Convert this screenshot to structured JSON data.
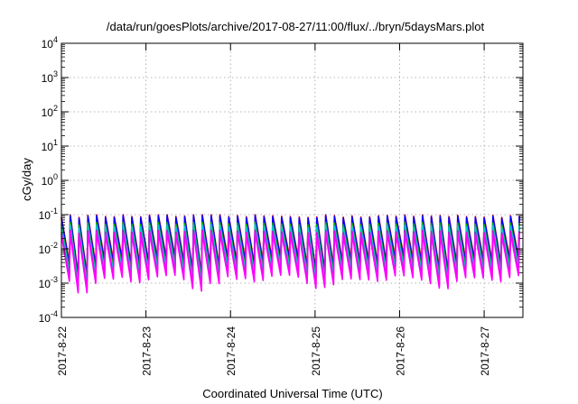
{
  "chart_data": {
    "type": "line",
    "title": "/data/run/goesPlots/archive/2017-08-27/11:00/flux/../bryn/5daysMars.plot",
    "xlabel": "Coordinated Universal Time (UTC)",
    "ylabel": "cGy/day",
    "yscale": "log",
    "ylim": [
      0.0001,
      10000
    ],
    "xlim": [
      "2017-08-22T00:00",
      "2017-08-27T11:00"
    ],
    "grid": true,
    "y_ticks": [
      {
        "base": "10",
        "exp": "-4"
      },
      {
        "base": "10",
        "exp": "-3"
      },
      {
        "base": "10",
        "exp": "-2"
      },
      {
        "base": "10",
        "exp": "-1"
      },
      {
        "base": "10",
        "exp": "0"
      },
      {
        "base": "10",
        "exp": "1"
      },
      {
        "base": "10",
        "exp": "2"
      },
      {
        "base": "10",
        "exp": "3"
      },
      {
        "base": "10",
        "exp": "4"
      }
    ],
    "x_ticks": [
      "2017-8-22",
      "2017-8-23",
      "2017-8-24",
      "2017-8-25",
      "2017-8-26",
      "2017-8-27"
    ],
    "oscillation": {
      "period_hours": 2.5,
      "peak_range": [
        0.065,
        0.1
      ],
      "trough_range": [
        0.0005,
        0.002
      ]
    },
    "series": [
      {
        "color": "#ff0000",
        "peak_factor": 1.0,
        "trough_factor": 3.0
      },
      {
        "color": "#0000ff",
        "peak_factor": 0.95,
        "trough_factor": 2.4
      },
      {
        "color": "#00b400",
        "peak_factor": 0.6,
        "trough_factor": 1.8
      },
      {
        "color": "#00c8c8",
        "peak_factor": 0.5,
        "trough_factor": 1.4
      },
      {
        "color": "#e000e0",
        "peak_factor": 0.35,
        "trough_factor": 1.0
      },
      {
        "color": "#ff00ff",
        "peak_factor": 0.3,
        "trough_factor": 0.85
      }
    ]
  }
}
